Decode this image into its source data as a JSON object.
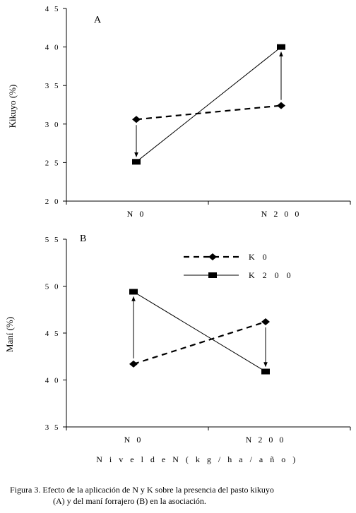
{
  "chart_data": [
    {
      "type": "line",
      "panel_label": "A",
      "ylabel": "Kikuyo (%)",
      "ylim": [
        20,
        45
      ],
      "yticks": [
        "2 0",
        "2 5",
        "3 0",
        "3 5",
        "4 0",
        "4 5"
      ],
      "categories": [
        "N  0",
        "N  2 0 0"
      ],
      "series": [
        {
          "name": "K  0",
          "values": [
            30.6,
            32.4
          ],
          "style": "dashed",
          "marker": "diamond"
        },
        {
          "name": "K  2 0 0",
          "values": [
            25.1,
            40.0
          ],
          "style": "solid",
          "marker": "square"
        }
      ],
      "annotations": [
        "arrow from K 0 to K 200 at N 0",
        "arrow from K 0 to K 200 at N 200"
      ],
      "grid": false
    },
    {
      "type": "line",
      "panel_label": "B",
      "ylabel": "Maní (%)",
      "ylim": [
        35,
        55
      ],
      "yticks": [
        "3 5",
        "4 0",
        "4 5",
        "5 0",
        "5 5"
      ],
      "categories": [
        "N  0",
        "N  2 0 0"
      ],
      "xlabel": "N i v e l  d e  N   ( k g / h a / a ñ o )",
      "series": [
        {
          "name": "K  0",
          "values": [
            41.7,
            46.2
          ],
          "style": "dashed",
          "marker": "diamond"
        },
        {
          "name": "K  2 0 0",
          "values": [
            49.4,
            40.9
          ],
          "style": "solid",
          "marker": "square"
        }
      ],
      "legend": {
        "position": "top-right",
        "entries": [
          "K  0",
          "K  2 0 0"
        ]
      },
      "annotations": [
        "arrow from K 0 to K 200 at N 0",
        "arrow from K 0 to K 200 at N 200"
      ],
      "grid": false
    }
  ],
  "caption": {
    "line1": "Figura  3. Efecto de la aplicación de N y K sobre la presencia del pasto kikuyo",
    "line2": "(A) y del maní forrajero (B) en la asociación."
  }
}
